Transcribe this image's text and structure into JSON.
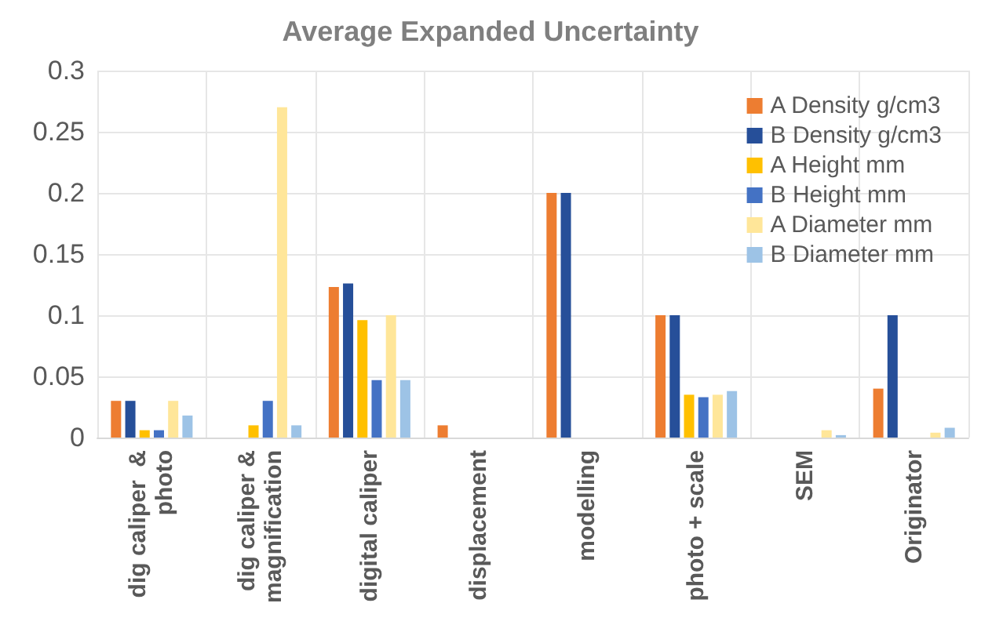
{
  "chart_data": {
    "type": "bar",
    "title": "Average Expanded Uncertainty",
    "categories": [
      "dig caliper  &\nphoto",
      "dig caliper &\nmagnification",
      "digital caliper",
      "displacement",
      "modelling",
      "photo + scale",
      "SEM",
      "Originator"
    ],
    "series": [
      {
        "name": "A Density g/cm3",
        "color": "#ed7d31",
        "values": [
          0.03,
          null,
          0.123,
          0.01,
          0.2,
          0.1,
          null,
          0.04
        ]
      },
      {
        "name": "B Density g/cm3",
        "color": "#264f99",
        "values": [
          0.03,
          null,
          0.126,
          null,
          0.2,
          0.1,
          null,
          0.1
        ]
      },
      {
        "name": "A Height mm",
        "color": "#ffc000",
        "values": [
          0.006,
          0.01,
          0.096,
          null,
          null,
          0.035,
          null,
          null
        ]
      },
      {
        "name": "B Height mm",
        "color": "#4472c4",
        "values": [
          0.006,
          0.03,
          0.047,
          null,
          null,
          0.033,
          null,
          null
        ]
      },
      {
        "name": "A Diameter mm",
        "color": "#ffe699",
        "values": [
          0.03,
          0.27,
          0.1,
          null,
          null,
          0.035,
          0.006,
          0.004
        ]
      },
      {
        "name": "B Diameter mm",
        "color": "#9dc3e6",
        "values": [
          0.018,
          0.01,
          0.047,
          null,
          null,
          0.038,
          0.002,
          0.008
        ]
      }
    ],
    "ylim": [
      0,
      0.3
    ],
    "yticks": [
      0,
      0.05,
      0.1,
      0.15,
      0.2,
      0.25,
      0.3
    ],
    "grid": true,
    "legend": "top right"
  }
}
